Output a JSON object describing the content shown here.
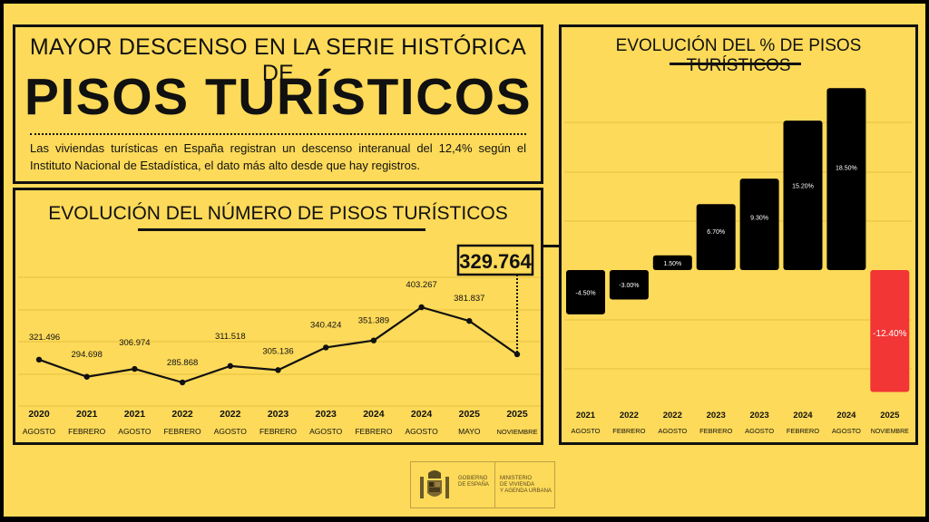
{
  "header": {
    "headline": "MAYOR DESCENSO EN LA SERIE HISTÓRICA DE",
    "title": "PISOS TURÍSTICOS",
    "description": "Las viviendas turísticas en España registran un descenso interanual del 12,4% según el Instituto Nacional de Estadística, el dato más alto desde que hay registros."
  },
  "line_chart": {
    "title": "EVOLUCIÓN DEL NÚMERO DE PISOS TURÍSTICOS",
    "highlight_value": "329.764"
  },
  "bar_chart": {
    "title": "EVOLUCIÓN DEL % DE PISOS TURÍSTICOS"
  },
  "footer": {
    "logo_left_line1": "GOBIERNO",
    "logo_left_line2": "DE ESPAÑA",
    "logo_right_line1": "MINISTERIO",
    "logo_right_line2": "DE VIVIENDA",
    "logo_right_line3": "Y AGENDA URBANA"
  },
  "colors": {
    "background": "#FDDA59",
    "ink": "#111111",
    "bar_positive": "#000000",
    "bar_highlight": "#F23535",
    "bar_label": "#FFFFFF"
  },
  "chart_data": [
    {
      "type": "line",
      "title": "EVOLUCIÓN DEL NÚMERO DE PISOS TURÍSTICOS",
      "xlabel": "",
      "ylabel": "",
      "grid": true,
      "categories": [
        {
          "year": "2020",
          "month": "AGOSTO"
        },
        {
          "year": "2021",
          "month": "FEBRERO"
        },
        {
          "year": "2021",
          "month": "AGOSTO"
        },
        {
          "year": "2022",
          "month": "FEBRERO"
        },
        {
          "year": "2022",
          "month": "AGOSTO"
        },
        {
          "year": "2023",
          "month": "FEBRERO"
        },
        {
          "year": "2023",
          "month": "AGOSTO"
        },
        {
          "year": "2024",
          "month": "FEBRERO"
        },
        {
          "year": "2024",
          "month": "AGOSTO"
        },
        {
          "year": "2025",
          "month": "MAYO"
        },
        {
          "year": "2025",
          "month": "NOVIEMBRE"
        }
      ],
      "values": [
        321496,
        294698,
        306974,
        285868,
        311518,
        305136,
        340424,
        351389,
        403267,
        381837,
        329764
      ],
      "labels": [
        "321.496",
        "294.698",
        "306.974",
        "285.868",
        "311.518",
        "305.136",
        "340.424",
        "351.389",
        "403.267",
        "381.837",
        "329.764"
      ],
      "annotation": {
        "index": 10,
        "text": "329.764"
      }
    },
    {
      "type": "bar",
      "title": "EVOLUCIÓN DEL % DE PISOS TURÍSTICOS",
      "xlabel": "",
      "ylabel": "",
      "grid": true,
      "categories": [
        {
          "year": "2021",
          "month": "AGOSTO"
        },
        {
          "year": "2022",
          "month": "FEBRERO"
        },
        {
          "year": "2022",
          "month": "AGOSTO"
        },
        {
          "year": "2023",
          "month": "FEBRERO"
        },
        {
          "year": "2023",
          "month": "AGOSTO"
        },
        {
          "year": "2024",
          "month": "FEBRERO"
        },
        {
          "year": "2024",
          "month": "AGOSTO"
        },
        {
          "year": "2025",
          "month": "NOVIEMBRE"
        }
      ],
      "values": [
        -4.5,
        -3.0,
        1.5,
        6.7,
        9.3,
        15.2,
        18.5,
        -12.4
      ],
      "labels": [
        "-4.50%",
        "-3.00%",
        "1.50%",
        "6.70%",
        "9.30%",
        "15.20%",
        "18.50%",
        "-12.40%"
      ],
      "highlight_index": 7
    }
  ]
}
